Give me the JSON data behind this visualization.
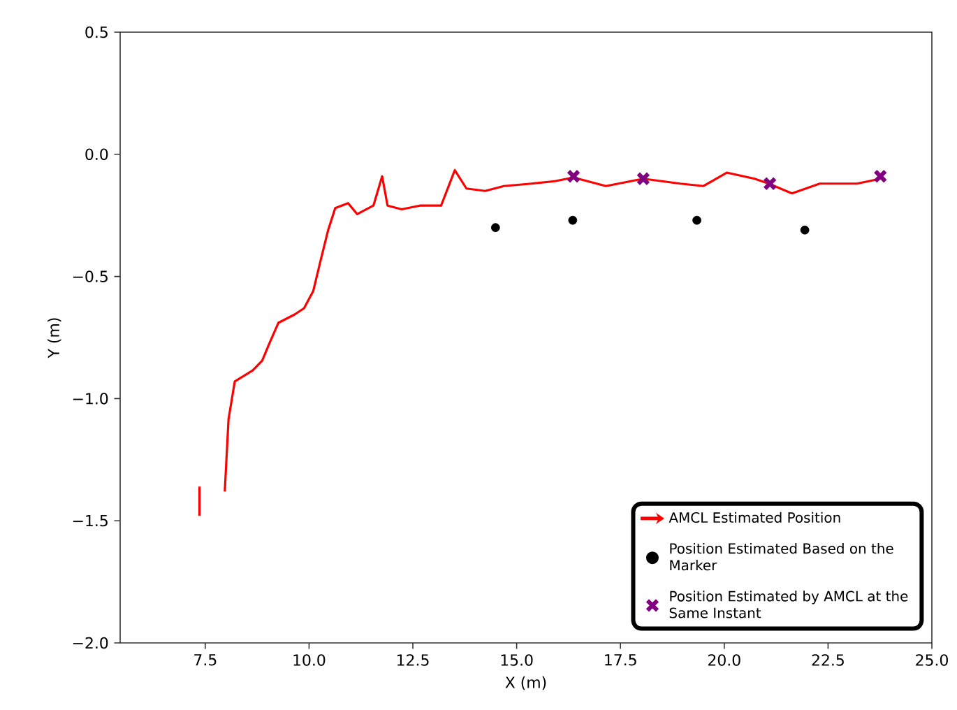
{
  "chart_data": {
    "type": "line",
    "xlabel": "X (m)",
    "ylabel": "Y (m)",
    "xlim": [
      5.45,
      25.0
    ],
    "ylim": [
      -2.0,
      0.5
    ],
    "xticks": [
      {
        "value": 7.5,
        "label": "7.5"
      },
      {
        "value": 10.0,
        "label": "10.0"
      },
      {
        "value": 12.5,
        "label": "12.5"
      },
      {
        "value": 15.0,
        "label": "15.0"
      },
      {
        "value": 17.5,
        "label": "17.5"
      },
      {
        "value": 20.0,
        "label": "20.0"
      },
      {
        "value": 22.5,
        "label": "22.5"
      },
      {
        "value": 25.0,
        "label": "25.0"
      }
    ],
    "yticks": [
      {
        "value": -2.0,
        "label": "−2.0"
      },
      {
        "value": -1.5,
        "label": "−1.5"
      },
      {
        "value": -1.0,
        "label": "−1.0"
      },
      {
        "value": -0.5,
        "label": "−0.5"
      },
      {
        "value": 0.0,
        "label": "0.0"
      },
      {
        "value": 0.5,
        "label": "0.5"
      }
    ],
    "legend": "bottom right",
    "series": [
      {
        "name": "AMCL Estimated Position",
        "color": "#ff0000",
        "marker": "none",
        "x": [
          7.36,
          7.36,
          null,
          7.97,
          8.06,
          8.21,
          8.64,
          8.87,
          9.03,
          9.26,
          9.66,
          9.88,
          10.1,
          10.27,
          10.46,
          10.63,
          10.94,
          11.16,
          11.55,
          11.76,
          11.89,
          12.23,
          12.67,
          13.18,
          13.51,
          13.79,
          14.24,
          14.69,
          15.36,
          15.92,
          16.37,
          17.15,
          18.05,
          18.94,
          19.5,
          20.06,
          20.73,
          21.07,
          21.63,
          22.3,
          23.2,
          23.76
        ],
        "values": [
          -1.36,
          -1.48,
          null,
          -1.38,
          -1.085,
          -0.93,
          -0.885,
          -0.845,
          -0.78,
          -0.69,
          -0.655,
          -0.63,
          -0.56,
          -0.44,
          -0.31,
          -0.22,
          -0.2,
          -0.245,
          -0.21,
          -0.09,
          -0.21,
          -0.225,
          -0.21,
          -0.21,
          -0.065,
          -0.14,
          -0.15,
          -0.13,
          -0.12,
          -0.11,
          -0.095,
          -0.13,
          -0.1,
          -0.12,
          -0.13,
          -0.075,
          -0.1,
          -0.12,
          -0.16,
          -0.12,
          -0.12,
          -0.1
        ]
      },
      {
        "name": "Position Estimated Based on the Marker",
        "type": "scatter",
        "color": "#000000",
        "marker": "circle",
        "x": [
          14.49,
          16.35,
          19.34,
          21.94
        ],
        "values": [
          -0.3,
          -0.27,
          -0.27,
          -0.31
        ]
      },
      {
        "name": "Position Estimated by AMCL at the Same Instant",
        "type": "scatter",
        "color": "#800080",
        "marker": "cross",
        "x": [
          16.37,
          18.05,
          21.1,
          23.76
        ],
        "values": [
          -0.09,
          -0.1,
          -0.12,
          -0.09
        ]
      }
    ]
  }
}
